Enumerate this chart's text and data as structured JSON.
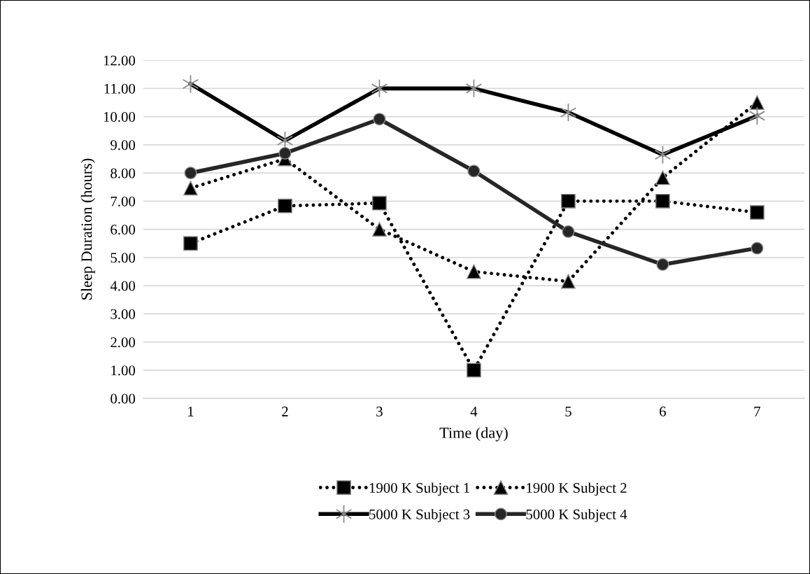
{
  "chart_data": {
    "type": "line",
    "xlabel": "Time (day)",
    "ylabel": "Sleep Duration (hours)",
    "categories": [
      "1",
      "2",
      "3",
      "4",
      "5",
      "6",
      "7"
    ],
    "series": [
      {
        "name": "1900 K Subject 1",
        "color": "#000000",
        "marker": "square",
        "line_style": "dotted",
        "values": [
          5.5,
          6.83,
          6.93,
          1.0,
          7.0,
          7.0,
          6.6
        ]
      },
      {
        "name": "1900 K Subject 2",
        "color": "#000000",
        "marker": "triangle",
        "line_style": "dotted",
        "values": [
          7.46,
          8.5,
          6.0,
          4.5,
          4.15,
          7.83,
          10.5
        ]
      },
      {
        "name": "5000 K Subject 3",
        "color": "#000000",
        "marker": "cross",
        "line_style": "solid",
        "values": [
          11.16,
          9.15,
          11.0,
          11.0,
          10.15,
          8.65,
          10.03
        ]
      },
      {
        "name": "5000 K Subject 4",
        "color": "#262626",
        "marker": "circle",
        "line_style": "solid",
        "values": [
          8.0,
          8.7,
          9.91,
          8.07,
          5.92,
          4.75,
          5.33
        ]
      }
    ],
    "ylim": [
      0,
      12
    ],
    "yticks": [
      {
        "value": 0,
        "label": "0.00"
      },
      {
        "value": 1,
        "label": "1.00"
      },
      {
        "value": 2,
        "label": "2.00"
      },
      {
        "value": 3,
        "label": "3.00"
      },
      {
        "value": 4,
        "label": "4.00"
      },
      {
        "value": 5,
        "label": "5.00"
      },
      {
        "value": 6,
        "label": "6.00"
      },
      {
        "value": 7,
        "label": "7.00"
      },
      {
        "value": 8,
        "label": "8.00"
      },
      {
        "value": 9,
        "label": "9.00"
      },
      {
        "value": 10,
        "label": "10.00"
      },
      {
        "value": 11,
        "label": "11.00"
      },
      {
        "value": 12,
        "label": "12.00"
      }
    ],
    "grid": "y",
    "legend": "bottom"
  }
}
